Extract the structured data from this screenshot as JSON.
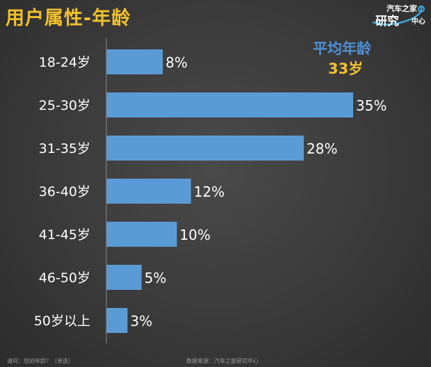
{
  "header": {
    "title": "用户属性-年龄",
    "logo": {
      "line1": "汽车之家",
      "line2": "研究",
      "line3": "中心"
    }
  },
  "average": {
    "label": "平均年龄",
    "value": "33岁"
  },
  "chart_data": {
    "type": "bar",
    "orientation": "horizontal",
    "title": "用户属性-年龄",
    "categories": [
      "18-24岁",
      "25-30岁",
      "31-35岁",
      "36-40岁",
      "41-45岁",
      "46-50岁",
      "50岁以上"
    ],
    "values": [
      8,
      35,
      28,
      12,
      10,
      5,
      3
    ],
    "value_labels": [
      "8%",
      "35%",
      "28%",
      "12%",
      "10%",
      "5%",
      "3%"
    ],
    "xlim": [
      0,
      35
    ],
    "xlabel": "",
    "ylabel": "",
    "grid": false,
    "bar_color": "#5b9bd5"
  },
  "footer": {
    "question": "请问：您的年龄？（单选）",
    "source": "数据来源：汽车之家研究中心"
  },
  "colors": {
    "title": "#f2c12e",
    "avg_label": "#4f8fd2",
    "bar": "#5b9bd5",
    "text": "#ffffff"
  }
}
